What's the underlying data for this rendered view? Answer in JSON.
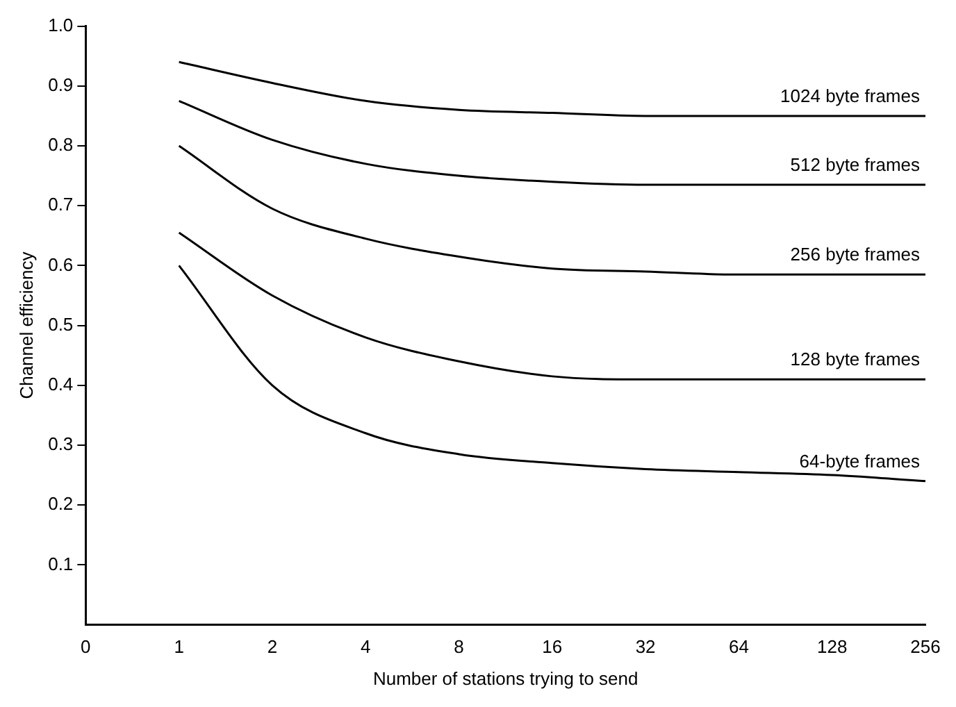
{
  "chart_data": {
    "type": "line",
    "xlabel": "Number of stations trying to send",
    "ylabel": "Channel efficiency",
    "categories": [
      "0",
      "1",
      "2",
      "4",
      "8",
      "16",
      "32",
      "64",
      "128",
      "256"
    ],
    "series": [
      {
        "name": "1024 byte frames",
        "color": "#000000",
        "values": [
          null,
          0.94,
          0.905,
          0.875,
          0.86,
          0.855,
          0.85,
          0.85,
          0.85,
          0.85
        ]
      },
      {
        "name": "512 byte frames",
        "color": "#000000",
        "values": [
          null,
          0.875,
          0.81,
          0.77,
          0.75,
          0.74,
          0.735,
          0.735,
          0.735,
          0.735
        ]
      },
      {
        "name": "256 byte frames",
        "color": "#000000",
        "values": [
          null,
          0.8,
          0.695,
          0.645,
          0.615,
          0.595,
          0.59,
          0.585,
          0.585,
          0.585
        ]
      },
      {
        "name": "128 byte frames",
        "color": "#000000",
        "values": [
          null,
          0.655,
          0.55,
          0.48,
          0.44,
          0.415,
          0.41,
          0.41,
          0.41,
          0.41
        ]
      },
      {
        "name": "64-byte frames",
        "color": "#000000",
        "values": [
          null,
          0.6,
          0.4,
          0.32,
          0.285,
          0.27,
          0.26,
          0.255,
          0.25,
          0.24
        ]
      }
    ],
    "ylim": [
      0,
      1
    ],
    "yticks": [
      0.1,
      0.2,
      0.3,
      0.4,
      0.5,
      0.6,
      0.7,
      0.8,
      0.9,
      {
        "value": 1,
        "label": "1.0"
      }
    ],
    "grid": false,
    "legend": false,
    "marker": "none",
    "line_style": "solid"
  }
}
